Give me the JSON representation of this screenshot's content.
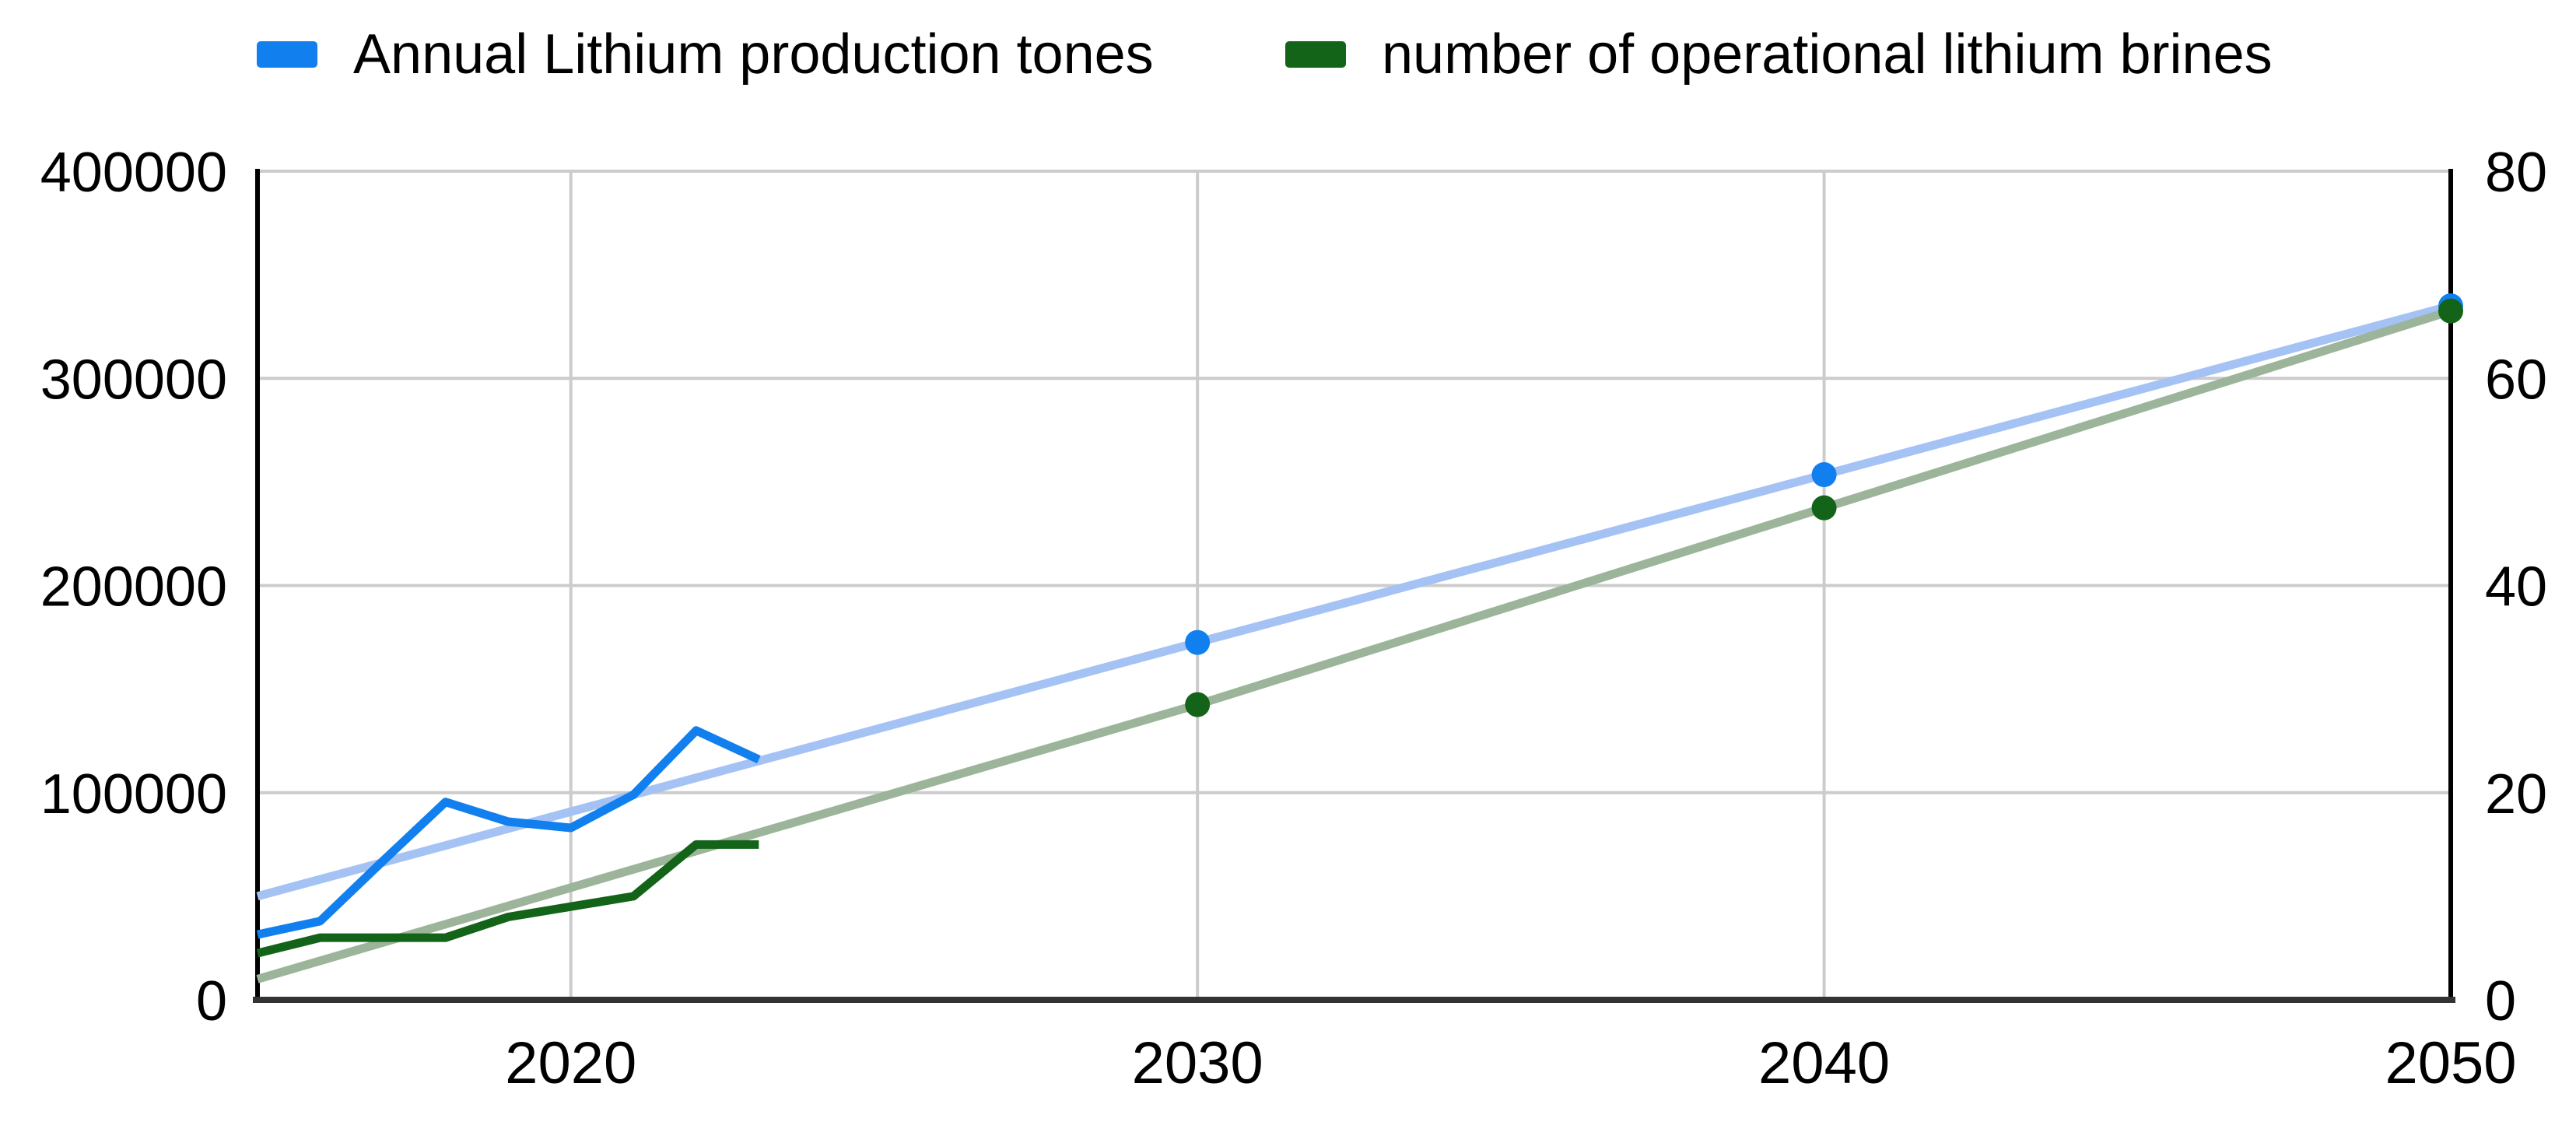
{
  "legend": {
    "items": [
      {
        "label": "Annual Lithium production tones",
        "color": "#1180ee"
      },
      {
        "label": "number of operational lithium brines",
        "color": "#136318"
      }
    ]
  },
  "chart_data": {
    "type": "line",
    "title": "",
    "grid": true,
    "legend_position": "top",
    "x": {
      "min": 2015,
      "max": 2050,
      "ticks": [
        2020,
        2030,
        2040,
        2050
      ]
    },
    "y_left": {
      "min": 0,
      "max": 400000,
      "ticks": [
        0,
        100000,
        200000,
        300000,
        400000
      ]
    },
    "y_right": {
      "min": 0,
      "max": 80,
      "ticks": [
        0,
        20,
        40,
        60,
        80
      ]
    },
    "series": [
      {
        "name": "Annual Lithium production tones (linear trend)",
        "kind": "trendline",
        "axis": "left",
        "color": "#a4c2f4",
        "marker_color": "#1180ee",
        "markers_at": [
          2030,
          2040,
          2050
        ],
        "x": [
          2015,
          2030,
          2040,
          2050
        ],
        "values": [
          50000,
          172500,
          253500,
          335000
        ]
      },
      {
        "name": "number of operational lithium brines (linear trend)",
        "kind": "trendline",
        "axis": "right",
        "color": "#9cb59a",
        "marker_color": "#136318",
        "markers_at": [
          2030,
          2040,
          2050
        ],
        "x": [
          2015,
          2030,
          2040,
          2050
        ],
        "values": [
          2,
          28.5,
          47.5,
          66.5
        ]
      },
      {
        "name": "number of operational lithium brines",
        "kind": "line",
        "axis": "right",
        "color": "#136318",
        "x": [
          2015,
          2016,
          2017,
          2018,
          2019,
          2020,
          2021,
          2022,
          2023
        ],
        "values": [
          4.5,
          6,
          6,
          6,
          8,
          9,
          10,
          15,
          15
        ]
      },
      {
        "name": "Annual Lithium production tones",
        "kind": "line",
        "axis": "left",
        "color": "#1180ee",
        "x": [
          2015,
          2016,
          2017,
          2018,
          2019,
          2020,
          2021,
          2022,
          2023
        ],
        "values": [
          31500,
          38000,
          67000,
          95500,
          86000,
          83000,
          99000,
          130000,
          116000
        ]
      }
    ]
  }
}
